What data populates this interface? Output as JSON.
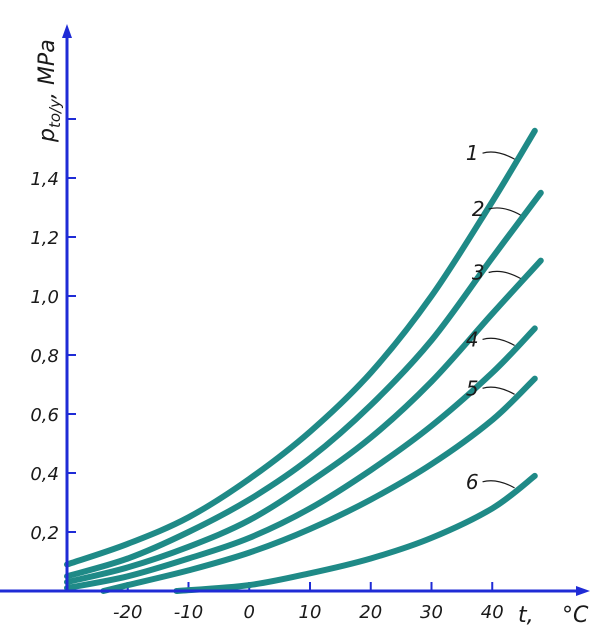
{
  "chart_data": {
    "type": "line",
    "ylabel_main": "p",
    "ylabel_sub": "to/y",
    "ylabel_unit": ", MPa",
    "xlabel_var": "t,",
    "xlabel_unit": "°C",
    "xlim": [
      -30,
      50
    ],
    "ylim": [
      0,
      1.8
    ],
    "x_ticks": [
      -20,
      -10,
      0,
      10,
      20,
      30,
      40
    ],
    "x_tick_labels": [
      "-20",
      "-10",
      "0",
      "10",
      "20",
      "30",
      "40"
    ],
    "y_ticks": [
      0.2,
      0.4,
      0.6,
      0.8,
      1.0,
      1.2,
      1.4,
      1.6
    ],
    "y_tick_labels": [
      "0,2",
      "0,4",
      "0,6",
      "0,8",
      "1,0",
      "1,2",
      "1,4",
      ""
    ],
    "axis_color": "#1f2bd6",
    "curve_color": "#1f8a87",
    "series": [
      {
        "name": "1",
        "x": [
          -30,
          -20,
          -10,
          0,
          10,
          20,
          30,
          40,
          47
        ],
        "y": [
          0.09,
          0.16,
          0.25,
          0.38,
          0.54,
          0.74,
          1.0,
          1.32,
          1.56
        ]
      },
      {
        "name": "2",
        "x": [
          -30,
          -20,
          -10,
          0,
          10,
          20,
          30,
          40,
          48
        ],
        "y": [
          0.05,
          0.11,
          0.2,
          0.31,
          0.45,
          0.63,
          0.85,
          1.13,
          1.35
        ]
      },
      {
        "name": "3",
        "x": [
          -30,
          -20,
          -10,
          0,
          10,
          20,
          30,
          40,
          48
        ],
        "y": [
          0.03,
          0.08,
          0.15,
          0.24,
          0.37,
          0.52,
          0.71,
          0.94,
          1.12
        ]
      },
      {
        "name": "4",
        "x": [
          -30,
          -20,
          -10,
          0,
          10,
          20,
          30,
          40,
          47
        ],
        "y": [
          0.01,
          0.05,
          0.11,
          0.18,
          0.28,
          0.41,
          0.56,
          0.74,
          0.89
        ]
      },
      {
        "name": "5",
        "x": [
          -24,
          -20,
          -10,
          0,
          10,
          20,
          30,
          40,
          47
        ],
        "y": [
          0.0,
          0.02,
          0.07,
          0.13,
          0.21,
          0.31,
          0.43,
          0.58,
          0.72
        ]
      },
      {
        "name": "6",
        "x": [
          -12,
          0,
          10,
          20,
          30,
          40,
          47
        ],
        "y": [
          0.0,
          0.02,
          0.06,
          0.11,
          0.18,
          0.28,
          0.39
        ]
      }
    ]
  }
}
